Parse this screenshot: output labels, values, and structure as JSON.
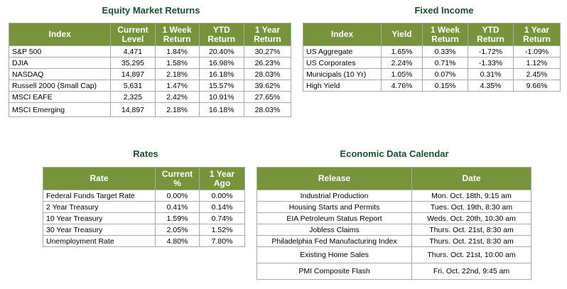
{
  "equity": {
    "title": "Equity Market Returns",
    "headers": [
      "Index",
      "Current Level",
      "1 Week Return",
      "YTD Return",
      "1 Year Return"
    ],
    "rows": [
      [
        "S&P 500",
        "4,471",
        "1.84%",
        "20.40%",
        "30.27%"
      ],
      [
        "DJIA",
        "35,295",
        "1.58%",
        "16.98%",
        "26.23%"
      ],
      [
        "NASDAQ",
        "14,897",
        "2.18%",
        "16.18%",
        "28.03%"
      ],
      [
        "Russell 2000 (Small Cap)",
        "5,631",
        "1.47%",
        "15.57%",
        "39.62%"
      ],
      [
        "MSCI EAFE",
        "2,325",
        "2.42%",
        "10.91%",
        "27.65%"
      ],
      [
        "MSCI Emerging",
        "14,897",
        "2.18%",
        "16.18%",
        "28.03%"
      ]
    ]
  },
  "fixed_income": {
    "title": "Fixed Income",
    "headers": [
      "Index",
      "Yield",
      "1 Week Return",
      "YTD Return",
      "1 Year Return"
    ],
    "rows": [
      [
        "US Aggregate",
        "1.65%",
        "0.33%",
        "-1.72%",
        "-1.09%"
      ],
      [
        "US Corporates",
        "2.24%",
        "0.71%",
        "-1.33%",
        "1.12%"
      ],
      [
        "Municipals (10 Yr)",
        "1.05%",
        "0.07%",
        "0.31%",
        "2.45%"
      ],
      [
        "High Yield",
        "4.76%",
        "0.15%",
        "4.35%",
        "9.66%"
      ]
    ]
  },
  "rates": {
    "title": "Rates",
    "headers": [
      "Rate",
      "Current %",
      "1 Year Ago"
    ],
    "rows": [
      [
        "Federal Funds Target Rate",
        "0.00%",
        "0.00%"
      ],
      [
        "2 Year Treasury",
        "0.41%",
        "0.14%"
      ],
      [
        "10 Year Treasury",
        "1.59%",
        "0.74%"
      ],
      [
        "30 Year Treasury",
        "2.05%",
        "1.52%"
      ],
      [
        "Unemployment Rate",
        "4.80%",
        "7.80%"
      ]
    ]
  },
  "calendar": {
    "title": "Economic Data Calendar",
    "headers": [
      "Release",
      "Date"
    ],
    "rows": [
      [
        "Industrial Production",
        "Mon. Oct. 18th, 9:15 am"
      ],
      [
        "Housing Starts and Permits",
        "Tues. Oct. 19th, 8:30 am"
      ],
      [
        "EIA Petroleum Status Report",
        "Weds. Oct. 20th, 10:30 am"
      ],
      [
        "Jobless Claims",
        "Thurs. Oct. 21st, 8:30 am"
      ],
      [
        "Philadelphia Fed Manufacturing Index",
        "Thurs. Oct. 21st, 8:30 am"
      ],
      [
        "Existing Home Sales",
        "Thurs. Oct. 21st, 10:00 am"
      ],
      [
        "PMI Composite Flash",
        "Fri. Oct. 22nd, 9:45 am"
      ]
    ]
  },
  "colors": {
    "header_bg": "#77933c",
    "title_text": "#1f4d2e"
  }
}
